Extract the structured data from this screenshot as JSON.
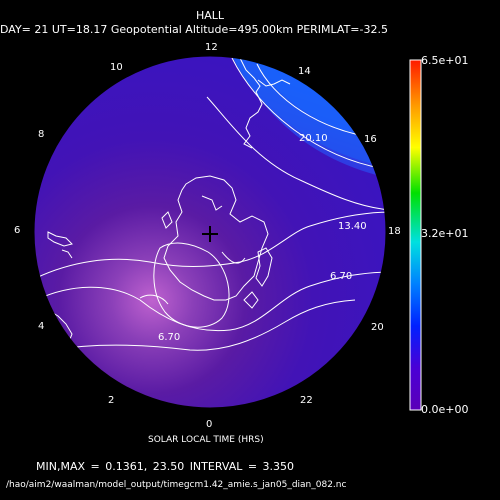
{
  "header": {
    "title": "HALL",
    "subtitle": "DAY= 21 UT=18.17 Geopotential Altitude=495.00km PERIMLAT=-32.5"
  },
  "plot": {
    "hour_labels": [
      "12",
      "14",
      "16",
      "18",
      "20",
      "22",
      "0",
      "2",
      "4",
      "6",
      "8",
      "10"
    ],
    "contour_labels": [
      "20.10",
      "13.40",
      "6.70",
      "6.70"
    ],
    "contour_interval": 3.35,
    "x_axis_label": "SOLAR LOCAL TIME (HRS)",
    "min": 0.1361,
    "max": 23.5
  },
  "colorbar": {
    "top_label": "6.5e+01",
    "mid_label": "3.2e+01",
    "bottom_label": "0.0e+00",
    "colors": [
      "#ff1a00",
      "#ff9a00",
      "#ffff00",
      "#00e000",
      "#00e0e0",
      "#0080ff",
      "#0020ff",
      "#4a00d6",
      "#5a00b8"
    ]
  },
  "footer": {
    "minmax_line": "MIN,MAX =     0.1361,     23.50 INTERVAL =      3.350",
    "file_path": "/hao/aim2/waalman/model_output/timegcm1.42_amie.s_jan05_dian_082.nc"
  }
}
